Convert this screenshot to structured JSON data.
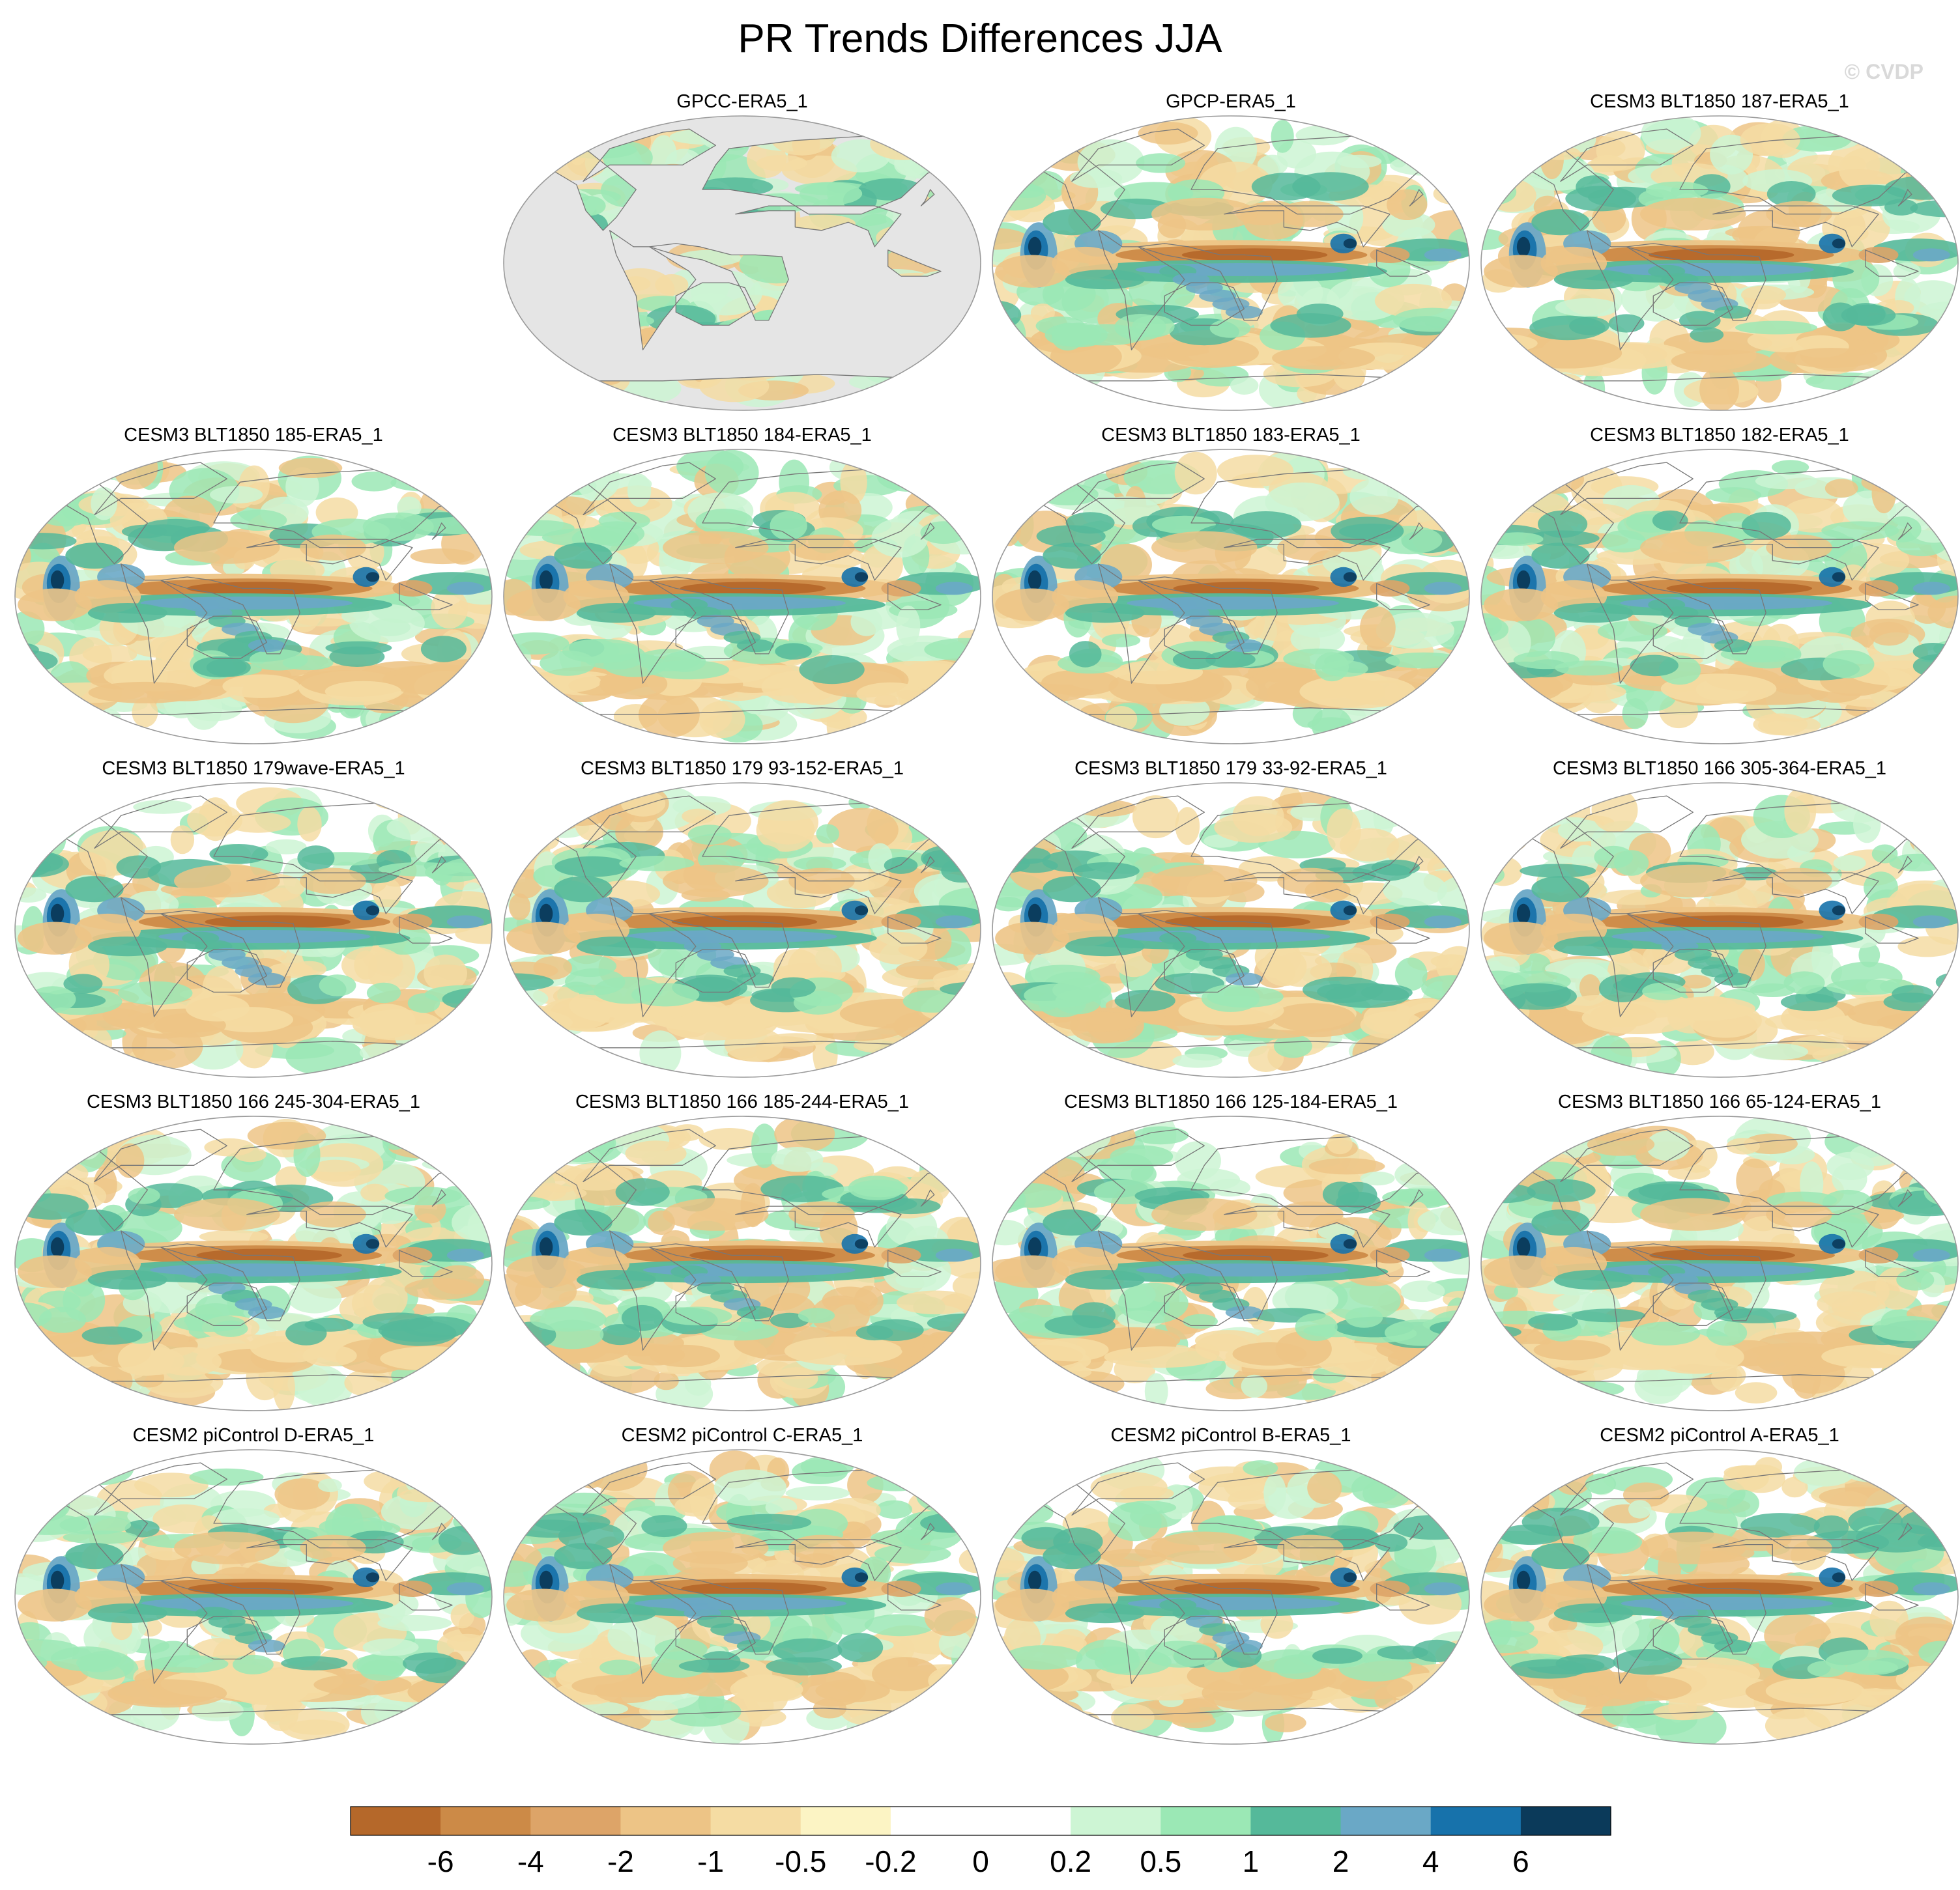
{
  "chart_data": {
    "type": "heatmap",
    "title": "PR Trends Differences JJA",
    "watermark": "© CVDP",
    "panels": [
      {
        "label": "GPCC-ERA5_1",
        "land_only": true
      },
      {
        "label": "GPCP-ERA5_1"
      },
      {
        "label": "CESM3 BLT1850 187-ERA5_1"
      },
      {
        "label": "CESM3 BLT1850 185-ERA5_1"
      },
      {
        "label": "CESM3 BLT1850 184-ERA5_1"
      },
      {
        "label": "CESM3 BLT1850 183-ERA5_1"
      },
      {
        "label": "CESM3 BLT1850 182-ERA5_1"
      },
      {
        "label": "CESM3 BLT1850 179wave-ERA5_1"
      },
      {
        "label": "CESM3 BLT1850 179 93-152-ERA5_1"
      },
      {
        "label": "CESM3 BLT1850 179 33-92-ERA5_1"
      },
      {
        "label": "CESM3 BLT1850 166 305-364-ERA5_1"
      },
      {
        "label": "CESM3 BLT1850 166 245-304-ERA5_1"
      },
      {
        "label": "CESM3 BLT1850 166 185-244-ERA5_1"
      },
      {
        "label": "CESM3 BLT1850 166 125-184-ERA5_1"
      },
      {
        "label": "CESM3 BLT1850 166 65-124-ERA5_1"
      },
      {
        "label": "CESM2 piControl D-ERA5_1"
      },
      {
        "label": "CESM2 piControl C-ERA5_1"
      },
      {
        "label": "CESM2 piControl B-ERA5_1"
      },
      {
        "label": "CESM2 piControl A-ERA5_1"
      }
    ],
    "colorbar": {
      "levels": [
        "-6",
        "-4",
        "-2",
        "-1",
        "-0.5",
        "-0.2",
        "0",
        "0.2",
        "0.5",
        "1",
        "2",
        "4",
        "6"
      ],
      "colors": [
        "#b5682a",
        "#cc8a47",
        "#dda468",
        "#edc486",
        "#f5dca3",
        "#fcf4c4",
        "#ffffff",
        "#ffffff",
        "#cdf5d4",
        "#9be8b5",
        "#55b99a",
        "#6aa8c6",
        "#1772ab",
        "#0b3a5a"
      ]
    }
  },
  "colors": {
    "land_mask": "#e5e5e5",
    "coastline": "#777777",
    "border": "#9a9a9a"
  }
}
